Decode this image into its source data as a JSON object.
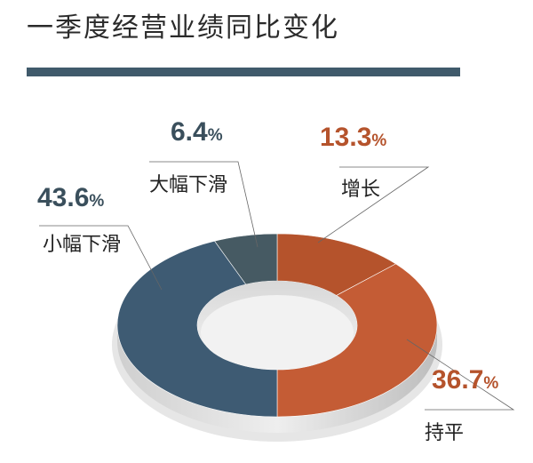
{
  "title": "一季度经营业绩同比变化",
  "colors": {
    "title_bar": "#405a6b",
    "增长": "#b5532c",
    "持平": "#c45c35",
    "小幅下滑": "#3e5b73",
    "大幅下滑": "#465a63",
    "label_dark": "#3a4f5c",
    "label_orange": "#b5532c"
  },
  "chart_data": {
    "type": "pie",
    "style": "donut",
    "title": "一季度经营业绩同比变化",
    "unit": "%",
    "slices": [
      {
        "label": "增长",
        "value": 13.3,
        "display": "13.3"
      },
      {
        "label": "持平",
        "value": 36.7,
        "display": "36.7"
      },
      {
        "label": "小幅下滑",
        "value": 43.6,
        "display": "43.6"
      },
      {
        "label": "大幅下滑",
        "value": 6.4,
        "display": "6.4"
      }
    ]
  }
}
